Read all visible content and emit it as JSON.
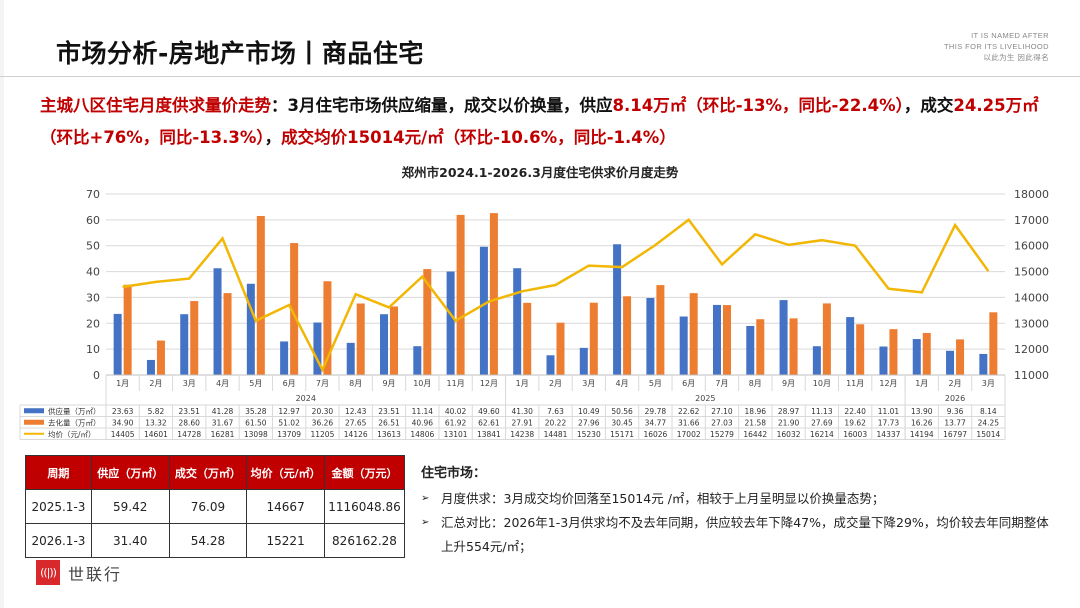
{
  "header": {
    "title": "市场分析-房地产市场丨商品住宅",
    "tagline": [
      "IT IS NAMED AFTER",
      "THIS FOR ITS LIVELIHOOD",
      "以此为生  因此得名"
    ]
  },
  "summary": {
    "label": "主城八区住宅月度供求量价走势",
    "colon": "：",
    "t1": "3月住宅市场供应缩量，成交以价换量，供应",
    "supply": "8.14万㎡（环比-13%，同比-22.4%）",
    "t2": "，成交",
    "deal": "24.25万㎡（环比+76%，同比-13.3%）",
    "t3": "，",
    "price": "成交均价15014元/㎡（环比-10.6%，同比-1.4%）"
  },
  "chart_data": {
    "type": "bar",
    "title": "郑州市2024.1-2026.3月度住宅供求价月度走势",
    "categories": [
      "1月",
      "2月",
      "3月",
      "4月",
      "5月",
      "6月",
      "7月",
      "8月",
      "9月",
      "10月",
      "11月",
      "12月",
      "1月",
      "2月",
      "3月",
      "4月",
      "5月",
      "6月",
      "7月",
      "8月",
      "9月",
      "10月",
      "11月",
      "12月",
      "1月",
      "2月",
      "3月"
    ],
    "year_groups": [
      {
        "label": "2024",
        "span": 12
      },
      {
        "label": "2025",
        "span": 12
      },
      {
        "label": "2026",
        "span": 3
      }
    ],
    "series": [
      {
        "name": "供应量（万㎡）",
        "type": "bar",
        "axis": "left",
        "color": "#4472c4",
        "values": [
          23.63,
          5.82,
          23.51,
          41.28,
          35.28,
          12.97,
          20.3,
          12.43,
          23.51,
          11.14,
          40.02,
          49.6,
          41.3,
          7.63,
          10.49,
          50.56,
          29.78,
          22.62,
          27.1,
          18.96,
          28.97,
          11.13,
          22.4,
          11.01,
          13.9,
          9.36,
          8.14
        ]
      },
      {
        "name": "去化量（万㎡）",
        "type": "bar",
        "axis": "left",
        "color": "#ed7d31",
        "values": [
          34.9,
          13.32,
          28.6,
          31.67,
          61.5,
          51.02,
          36.26,
          27.65,
          26.51,
          40.96,
          61.92,
          62.61,
          27.91,
          20.22,
          27.96,
          30.45,
          34.77,
          31.66,
          27.03,
          21.58,
          21.9,
          27.69,
          19.62,
          17.73,
          16.26,
          13.77,
          24.25
        ]
      },
      {
        "name": "均价（元/㎡）",
        "type": "line",
        "axis": "right",
        "color": "#f2b705",
        "values": [
          14405,
          14601,
          14728,
          16281,
          13098,
          13709,
          11205,
          14126,
          13613,
          14806,
          13101,
          13841,
          14238,
          14481,
          15230,
          15171,
          16026,
          17002,
          15279,
          16442,
          16032,
          16214,
          16003,
          14337,
          14194,
          16797,
          15014
        ]
      }
    ],
    "ylim_left": [
      0,
      70
    ],
    "yticks_left": [
      0,
      10,
      20,
      30,
      40,
      50,
      60,
      70
    ],
    "ylim_right": [
      11000,
      18000
    ],
    "yticks_right": [
      11000,
      12000,
      13000,
      14000,
      15000,
      16000,
      17000,
      18000
    ],
    "grid": true,
    "legend_position": "data-table"
  },
  "summary_table": {
    "headers": [
      "周期",
      "供应（万㎡）",
      "成交（万㎡）",
      "均价（元/㎡）",
      "金额（万元）"
    ],
    "rows": [
      [
        "2025.1-3",
        "59.42",
        "76.09",
        "14667",
        "1116048.86"
      ],
      [
        "2026.1-3",
        "31.40",
        "54.28",
        "15221",
        "826162.28"
      ]
    ]
  },
  "market": {
    "title": "住宅市场：",
    "bullets": [
      "月度供求：3月成交均价回落至15014元 /㎡，相较于上月呈明显以价换量态势；",
      "汇总对比：2026年1-3月供求均不及去年同期，供应较去年下降47%，成交量下降29%，均价较去年同期整体上升554元/㎡；"
    ]
  },
  "logo": {
    "mark": "((|))",
    "text": "世联行"
  }
}
